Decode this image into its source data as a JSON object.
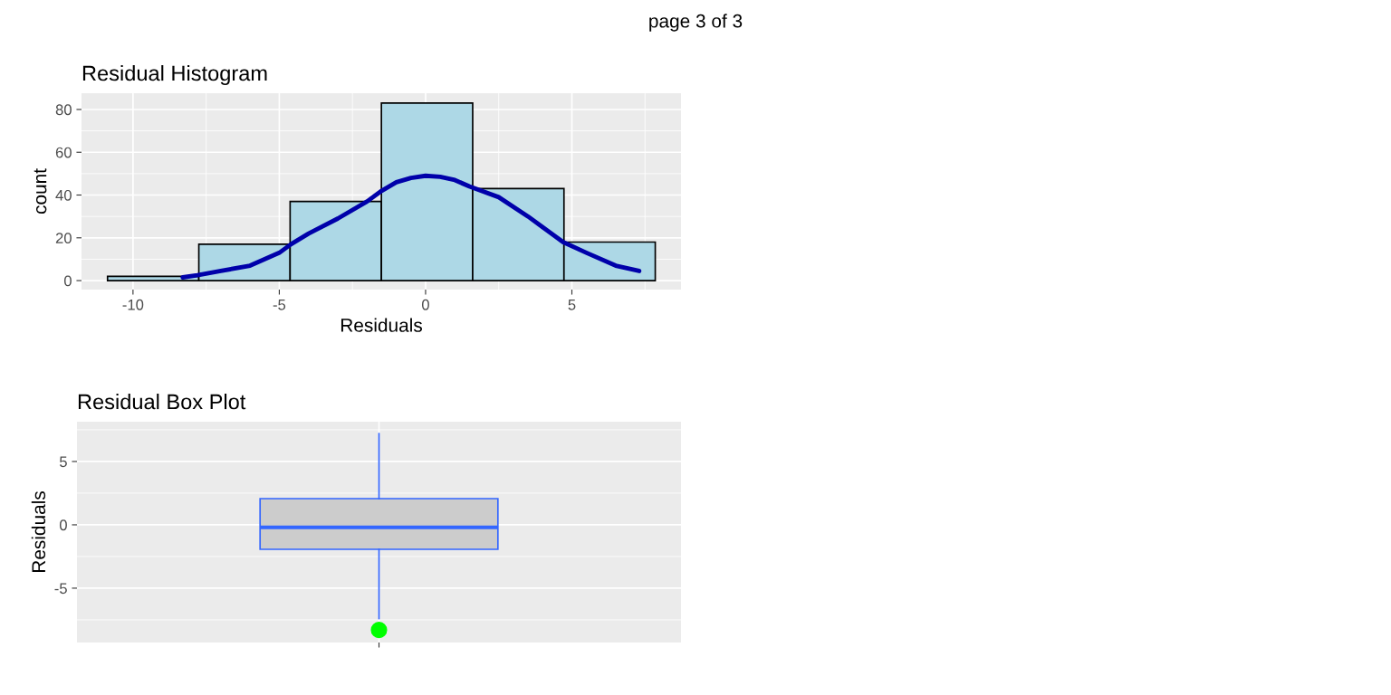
{
  "chart_data": [
    {
      "type": "histogram",
      "title": "Residual Histogram",
      "xlabel": "Residuals",
      "ylabel": "count",
      "annotations": [
        "page 3 of 3"
      ],
      "bins": [
        -10.87,
        -7.75,
        -4.63,
        -1.51,
        1.61,
        4.73,
        7.85
      ],
      "values": [
        2,
        17,
        37,
        83,
        43,
        18
      ],
      "color": "#add8e6",
      "series": [
        {
          "type": "line",
          "color": "#0000aa",
          "x": [
            -8.3,
            -7.8,
            -7,
            -6,
            -5,
            -4.6,
            -4,
            -3,
            -2,
            -1.5,
            -1,
            -0.5,
            0,
            0.5,
            1,
            1.5,
            2.5,
            3.5,
            4,
            4.7,
            5.5,
            6.5,
            7.3
          ],
          "values": [
            1.5,
            2.5,
            4.5,
            7,
            13,
            17,
            22,
            29,
            37,
            42,
            46,
            48,
            49,
            48.5,
            47,
            44,
            39,
            30,
            25,
            18,
            13,
            7,
            4.5
          ]
        }
      ],
      "xlim": [
        -11.76,
        8.73
      ],
      "ylim": [
        -4.2,
        87.6
      ],
      "xticks": [
        -10,
        -5,
        0,
        5
      ],
      "yticks": [
        0,
        20,
        40,
        60,
        80
      ],
      "grid": true
    },
    {
      "type": "box",
      "title": "Residual Box Plot",
      "ylabel": "Residuals",
      "categories": [
        null
      ],
      "series": [
        {
          "color": "#3366ff",
          "colors": [
            "#cccccc"
          ],
          "boxes": [
            {
              "low": -7.4,
              "q1": -1.93,
              "median": -0.2,
              "q3": 2.07,
              "high": 7.2,
              "outliers": [
                -8.3
              ]
            }
          ]
        }
      ],
      "ylim": [
        -9.29,
        8.14
      ],
      "yticks": [
        -5,
        0,
        5
      ],
      "grid": true
    }
  ]
}
